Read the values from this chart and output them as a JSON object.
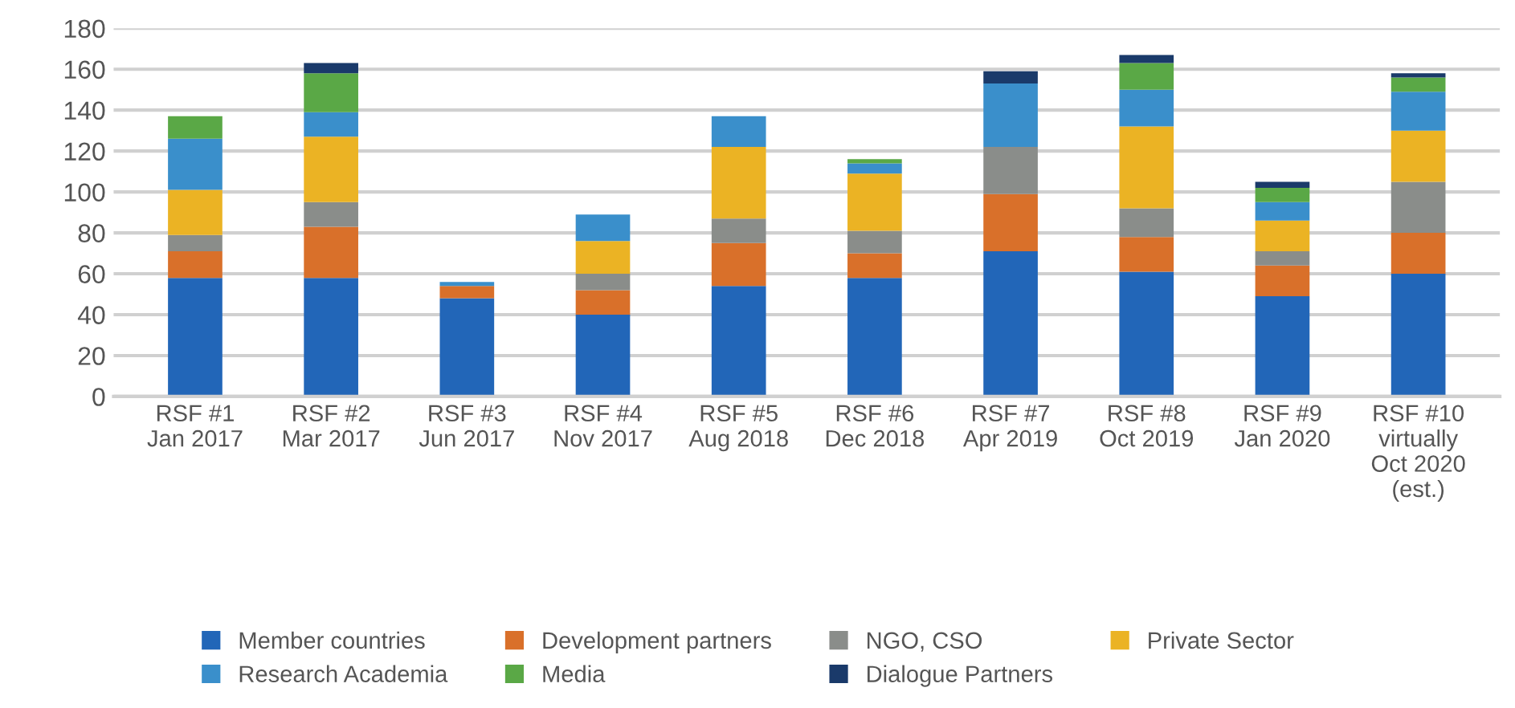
{
  "chart_data": {
    "type": "bar",
    "stacked": true,
    "categories": [
      "RSF #1\nJan 2017",
      "RSF #2\nMar 2017",
      "RSF #3\nJun 2017",
      "RSF #4\nNov 2017",
      "RSF #5\nAug 2018",
      "RSF #6\nDec 2018",
      "RSF #7\nApr 2019",
      "RSF #8\nOct 2019",
      "RSF #9\nJan 2020",
      "RSF #10\nvirtually\nOct 2020\n(est.)"
    ],
    "series": [
      {
        "name": "Member countries",
        "color": "#2266b8",
        "values": [
          58,
          58,
          48,
          40,
          54,
          58,
          71,
          61,
          49,
          60
        ]
      },
      {
        "name": "Development partners",
        "color": "#d9702a",
        "values": [
          13,
          25,
          6,
          12,
          21,
          12,
          28,
          17,
          15,
          20
        ]
      },
      {
        "name": "NGO, CSO",
        "color": "#8a8d8a",
        "values": [
          8,
          12,
          null,
          8,
          12,
          11,
          23,
          14,
          7,
          25
        ]
      },
      {
        "name": "Private Sector",
        "color": "#ebb324",
        "values": [
          22,
          32,
          null,
          16,
          35,
          28,
          null,
          40,
          15,
          25
        ]
      },
      {
        "name": "Research Academia",
        "color": "#3a8fcb",
        "values": [
          25,
          12,
          2,
          13,
          15,
          5,
          31,
          18,
          9,
          19
        ]
      },
      {
        "name": "Media",
        "color": "#5aa846",
        "values": [
          11,
          19,
          null,
          null,
          null,
          2,
          null,
          13,
          7,
          7
        ]
      },
      {
        "name": "Dialogue Partners",
        "color": "#1a3a6a",
        "values": [
          null,
          5,
          null,
          null,
          null,
          null,
          6,
          4,
          3,
          2
        ]
      }
    ],
    "ylim": [
      0,
      180
    ],
    "yticks": [
      0,
      20,
      40,
      60,
      80,
      100,
      120,
      140,
      160,
      180
    ],
    "grid": "y",
    "legend": "bottom"
  }
}
